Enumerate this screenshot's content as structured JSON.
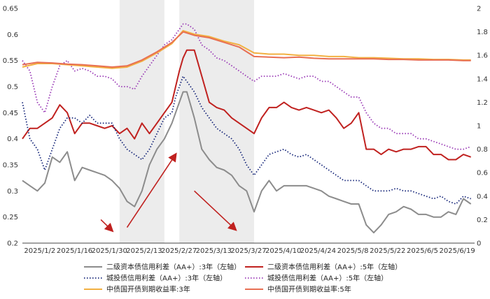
{
  "chart_data": {
    "type": "line",
    "title": "",
    "x_ticks": [
      "2025/1/2",
      "2025/1/16",
      "2025/1/30",
      "2025/2/13",
      "2025/2/27",
      "2025/3/13",
      "2025/3/27",
      "2025/4/10",
      "2025/4/24",
      "2025/5/8",
      "2025/5/22",
      "2025/6/5",
      "2025/6/19"
    ],
    "x_range": [
      0,
      121
    ],
    "left_axis": {
      "ylim": [
        0.2,
        0.65
      ],
      "ticks": [
        "0.2",
        "0.25",
        "0.3",
        "0.35",
        "0.4",
        "0.45",
        "0.5",
        "0.55",
        "0.6",
        "0.65"
      ]
    },
    "right_axis": {
      "ylim": [
        0,
        2
      ],
      "ticks": [
        "0",
        "0.2",
        "0.4",
        "0.6",
        "0.8",
        "1",
        "1.2",
        "1.4",
        "1.6",
        "1.8",
        "2"
      ]
    },
    "shaded_periods": [
      [
        26,
        38
      ],
      [
        42,
        62
      ]
    ],
    "arrows": [
      {
        "from": [
          21,
          0.245
        ],
        "to": [
          24,
          0.224
        ]
      },
      {
        "from": [
          28,
          0.23
        ],
        "to": [
          41,
          0.37
        ]
      },
      {
        "from": [
          46,
          0.3
        ],
        "to": [
          57,
          0.226
        ]
      }
    ],
    "series": [
      {
        "name": "二级资本债信用利差（AA+）:3年（左轴）",
        "axis": "left",
        "color": "#8c8c8c",
        "dash": "solid",
        "width": 2,
        "x": [
          0,
          2,
          4,
          6,
          8,
          10,
          12,
          14,
          16,
          18,
          20,
          22,
          24,
          26,
          28,
          30,
          32,
          34,
          36,
          38,
          40,
          41,
          42,
          43,
          44,
          46,
          48,
          50,
          52,
          54,
          56,
          58,
          60,
          62,
          64,
          66,
          68,
          70,
          72,
          74,
          76,
          78,
          80,
          82,
          84,
          86,
          88,
          90,
          92,
          94,
          96,
          98,
          100,
          102,
          104,
          106,
          108,
          110,
          112,
          114,
          116,
          118,
          120
        ],
        "y": [
          0.32,
          0.31,
          0.3,
          0.315,
          0.365,
          0.355,
          0.375,
          0.32,
          0.345,
          0.34,
          0.335,
          0.33,
          0.32,
          0.305,
          0.28,
          0.27,
          0.3,
          0.35,
          0.38,
          0.4,
          0.43,
          0.45,
          0.47,
          0.49,
          0.49,
          0.44,
          0.38,
          0.36,
          0.345,
          0.34,
          0.33,
          0.31,
          0.3,
          0.26,
          0.3,
          0.32,
          0.3,
          0.31,
          0.31,
          0.31,
          0.31,
          0.305,
          0.3,
          0.29,
          0.285,
          0.28,
          0.275,
          0.275,
          0.235,
          0.22,
          0.235,
          0.255,
          0.26,
          0.27,
          0.265,
          0.255,
          0.255,
          0.25,
          0.25,
          0.26,
          0.255,
          0.285,
          0.275
        ]
      },
      {
        "name": "二级资本债信用利差（AA+）:5年（左轴）",
        "axis": "left",
        "color": "#c0211f",
        "dash": "solid",
        "width": 2,
        "x": [
          0,
          2,
          4,
          6,
          8,
          10,
          12,
          14,
          16,
          18,
          20,
          22,
          24,
          26,
          28,
          30,
          32,
          34,
          36,
          38,
          40,
          41,
          42,
          43,
          44,
          46,
          48,
          50,
          52,
          54,
          56,
          58,
          60,
          62,
          64,
          66,
          68,
          70,
          72,
          74,
          76,
          78,
          80,
          82,
          84,
          86,
          88,
          90,
          92,
          94,
          96,
          98,
          100,
          102,
          104,
          106,
          108,
          110,
          112,
          114,
          116,
          118,
          120
        ],
        "y": [
          0.4,
          0.42,
          0.42,
          0.43,
          0.44,
          0.465,
          0.45,
          0.41,
          0.43,
          0.43,
          0.425,
          0.42,
          0.425,
          0.41,
          0.42,
          0.4,
          0.43,
          0.41,
          0.43,
          0.45,
          0.47,
          0.5,
          0.53,
          0.555,
          0.57,
          0.57,
          0.52,
          0.47,
          0.46,
          0.455,
          0.44,
          0.43,
          0.42,
          0.41,
          0.44,
          0.46,
          0.46,
          0.47,
          0.46,
          0.455,
          0.46,
          0.455,
          0.45,
          0.455,
          0.44,
          0.42,
          0.43,
          0.45,
          0.38,
          0.38,
          0.37,
          0.38,
          0.375,
          0.38,
          0.38,
          0.385,
          0.385,
          0.37,
          0.37,
          0.36,
          0.36,
          0.37,
          0.365
        ]
      },
      {
        "name": "城投债信用利差（AA+）:3年（左轴）",
        "axis": "left",
        "color": "#17277a",
        "dash": "dotted",
        "width": 1.8,
        "x": [
          0,
          2,
          4,
          6,
          8,
          10,
          12,
          14,
          16,
          18,
          20,
          22,
          24,
          26,
          28,
          30,
          32,
          34,
          36,
          38,
          40,
          41,
          42,
          43,
          44,
          46,
          48,
          50,
          52,
          54,
          56,
          58,
          60,
          62,
          64,
          66,
          68,
          70,
          72,
          74,
          76,
          78,
          80,
          82,
          84,
          86,
          88,
          90,
          92,
          94,
          96,
          98,
          100,
          102,
          104,
          106,
          108,
          110,
          112,
          114,
          116,
          118,
          120
        ],
        "y": [
          0.47,
          0.4,
          0.38,
          0.34,
          0.38,
          0.42,
          0.44,
          0.44,
          0.43,
          0.445,
          0.43,
          0.43,
          0.43,
          0.4,
          0.38,
          0.37,
          0.36,
          0.38,
          0.41,
          0.44,
          0.45,
          0.48,
          0.5,
          0.52,
          0.51,
          0.49,
          0.46,
          0.44,
          0.42,
          0.41,
          0.4,
          0.38,
          0.35,
          0.33,
          0.35,
          0.37,
          0.375,
          0.38,
          0.37,
          0.365,
          0.37,
          0.36,
          0.35,
          0.34,
          0.33,
          0.32,
          0.32,
          0.32,
          0.31,
          0.3,
          0.3,
          0.3,
          0.305,
          0.3,
          0.3,
          0.295,
          0.29,
          0.285,
          0.29,
          0.28,
          0.275,
          0.29,
          0.285
        ]
      },
      {
        "name": "城投债信用利差（AA+）:5年（左轴）",
        "axis": "left",
        "color": "#9a3ab6",
        "dash": "dotted",
        "width": 1.8,
        "x": [
          0,
          2,
          4,
          6,
          8,
          10,
          12,
          14,
          16,
          18,
          20,
          22,
          24,
          26,
          28,
          30,
          32,
          34,
          36,
          38,
          40,
          41,
          42,
          43,
          44,
          46,
          48,
          50,
          52,
          54,
          56,
          58,
          60,
          62,
          64,
          66,
          68,
          70,
          72,
          74,
          76,
          78,
          80,
          82,
          84,
          86,
          88,
          90,
          92,
          94,
          96,
          98,
          100,
          102,
          104,
          106,
          108,
          110,
          112,
          114,
          116,
          118,
          120
        ],
        "y": [
          0.55,
          0.53,
          0.47,
          0.45,
          0.5,
          0.54,
          0.55,
          0.53,
          0.535,
          0.53,
          0.52,
          0.52,
          0.515,
          0.5,
          0.5,
          0.495,
          0.52,
          0.54,
          0.56,
          0.58,
          0.59,
          0.6,
          0.61,
          0.62,
          0.62,
          0.61,
          0.58,
          0.57,
          0.555,
          0.55,
          0.54,
          0.53,
          0.52,
          0.51,
          0.52,
          0.52,
          0.52,
          0.525,
          0.52,
          0.515,
          0.52,
          0.52,
          0.51,
          0.51,
          0.5,
          0.49,
          0.48,
          0.48,
          0.45,
          0.43,
          0.42,
          0.42,
          0.41,
          0.41,
          0.41,
          0.4,
          0.4,
          0.395,
          0.39,
          0.385,
          0.38,
          0.38,
          0.385
        ]
      },
      {
        "name": "中债国开债到期收益率:3年",
        "axis": "right",
        "color": "#f2b041",
        "dash": "solid",
        "width": 2,
        "x": [
          0,
          4,
          8,
          12,
          16,
          20,
          24,
          28,
          32,
          36,
          40,
          43,
          46,
          50,
          54,
          58,
          62,
          66,
          70,
          74,
          78,
          82,
          86,
          90,
          94,
          98,
          102,
          106,
          110,
          114,
          118,
          120
        ],
        "y": [
          1.5,
          1.53,
          1.53,
          1.52,
          1.51,
          1.5,
          1.49,
          1.5,
          1.55,
          1.62,
          1.7,
          1.81,
          1.78,
          1.76,
          1.72,
          1.69,
          1.62,
          1.61,
          1.61,
          1.6,
          1.6,
          1.59,
          1.59,
          1.58,
          1.58,
          1.575,
          1.57,
          1.57,
          1.565,
          1.565,
          1.56,
          1.56
        ]
      },
      {
        "name": "中债国开债到期收益率:5年",
        "axis": "right",
        "color": "#e86f53",
        "dash": "solid",
        "width": 2,
        "x": [
          0,
          4,
          8,
          12,
          16,
          20,
          24,
          28,
          32,
          36,
          40,
          43,
          46,
          50,
          54,
          58,
          62,
          66,
          70,
          74,
          78,
          82,
          86,
          90,
          94,
          98,
          102,
          106,
          110,
          114,
          118,
          120
        ],
        "y": [
          1.52,
          1.54,
          1.535,
          1.525,
          1.52,
          1.51,
          1.5,
          1.51,
          1.56,
          1.63,
          1.71,
          1.8,
          1.77,
          1.75,
          1.71,
          1.67,
          1.59,
          1.585,
          1.58,
          1.585,
          1.575,
          1.57,
          1.57,
          1.57,
          1.57,
          1.565,
          1.565,
          1.56,
          1.56,
          1.56,
          1.555,
          1.555
        ]
      }
    ]
  }
}
